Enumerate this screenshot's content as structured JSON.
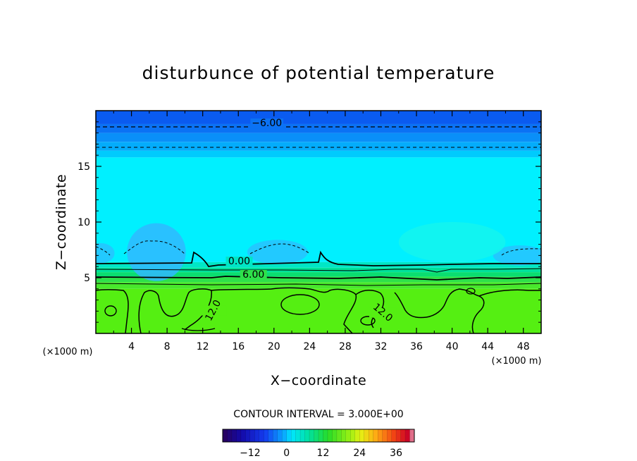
{
  "chart_data": {
    "type": "heatmap",
    "title": "disturbunce of potential temperature",
    "xlabel": "X−coordinate",
    "ylabel": "Z−coordinate",
    "x_unit": "(×1000 m)",
    "x_unit_right": "(×1000 m)",
    "xlim": [
      0,
      50
    ],
    "ylim": [
      0,
      20
    ],
    "x_ticks": [
      4,
      8,
      12,
      16,
      20,
      24,
      28,
      32,
      36,
      40,
      44,
      48
    ],
    "y_ticks": [
      5,
      10,
      15
    ],
    "contour_interval_text": "CONTOUR INTERVAL = 3.000E+00",
    "contour_interval": 3.0,
    "contour_labels": [
      {
        "text": "−6.00",
        "x": 19.2,
        "z": 18.6
      },
      {
        "text": "0.00",
        "x": 16.1,
        "z": 6.2
      },
      {
        "text": "6.00",
        "x": 17.7,
        "z": 5.0
      },
      {
        "text": "12.0",
        "x": 13.2,
        "z": 1.8
      },
      {
        "text": "12.0",
        "x": 32.2,
        "z": 1.6
      }
    ],
    "colorbar": {
      "min": -21,
      "max": 42,
      "ticks": [
        -12,
        0,
        12,
        24,
        36
      ],
      "tick_labels": [
        "−12",
        "0",
        "12",
        "24",
        "36"
      ]
    },
    "field_bands": [
      {
        "z_from": 18.8,
        "z_to": 20.0,
        "value": -7.5,
        "color": "#0a5bf0"
      },
      {
        "z_from": 18.0,
        "z_to": 18.8,
        "value": -6.0,
        "color": "#0b72f4"
      },
      {
        "z_from": 17.2,
        "z_to": 18.0,
        "value": -4.5,
        "color": "#0a8ff8"
      },
      {
        "z_from": 16.4,
        "z_to": 17.2,
        "value": -3.0,
        "color": "#04acfb"
      },
      {
        "z_from": 15.8,
        "z_to": 16.4,
        "value": -1.5,
        "color": "#00cbfd"
      },
      {
        "z_from": 6.4,
        "z_to": 15.8,
        "value": 0.0,
        "color": "#00f0ff"
      },
      {
        "z_from": 5.9,
        "z_to": 6.4,
        "value": 1.5,
        "color": "#00e6c6"
      },
      {
        "z_from": 5.5,
        "z_to": 5.9,
        "value": 3.0,
        "color": "#00e29a"
      },
      {
        "z_from": 5.1,
        "z_to": 5.5,
        "value": 4.5,
        "color": "#0ade70"
      },
      {
        "z_from": 4.6,
        "z_to": 5.1,
        "value": 6.0,
        "color": "#2ee04a"
      },
      {
        "z_from": 4.0,
        "z_to": 4.6,
        "value": 7.5,
        "color": "#48e82c"
      },
      {
        "z_from": 0.0,
        "z_to": 4.0,
        "value": 9.0,
        "color": "#55ef12"
      }
    ],
    "highlights": [
      {
        "x": 6.8,
        "z": 7.3,
        "rx": 3.3,
        "rz": 2.6,
        "value": -1.5,
        "color": "#30b8ff"
      },
      {
        "x": 20.4,
        "z": 7.3,
        "rx": 3.4,
        "rz": 1.1,
        "value": -1.5,
        "color": "#28c2ff"
      },
      {
        "x": 47.6,
        "z": 7.0,
        "rx": 3.0,
        "rz": 0.9,
        "value": -1.5,
        "color": "#28c2ff"
      },
      {
        "x": 0.6,
        "z": 7.2,
        "rx": 1.5,
        "rz": 0.9,
        "value": -1.5,
        "color": "#28c2ff"
      },
      {
        "x": 40.0,
        "z": 8.2,
        "rx": 6.0,
        "rz": 1.8,
        "value": 0.5,
        "color": "#14f4ee"
      }
    ]
  }
}
